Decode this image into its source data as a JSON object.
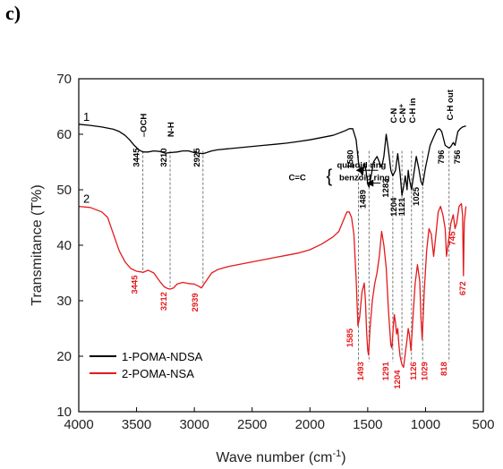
{
  "panel_label": "c)",
  "chart_data": {
    "type": "line",
    "xlabel": "Wave number (cm",
    "xlabel_sup": "-1",
    "xlabel_end": ")",
    "ylabel": "Transmitance (T%)",
    "xlim": [
      4000,
      500
    ],
    "ylim": [
      10,
      70
    ],
    "x_ticks": [
      "4000",
      "3500",
      "3000",
      "2500",
      "2000",
      "1500",
      "1000",
      "500"
    ],
    "y_ticks": [
      "10",
      "20",
      "30",
      "40",
      "50",
      "60",
      "70"
    ],
    "series": [
      {
        "name": "1-POMA-NDSA",
        "curve_label": "1",
        "color": "#000000",
        "x": [
          4000,
          3900,
          3800,
          3700,
          3650,
          3600,
          3560,
          3520,
          3480,
          3445,
          3400,
          3350,
          3300,
          3250,
          3210,
          3150,
          3100,
          3050,
          3000,
          2925,
          2850,
          2800,
          2700,
          2600,
          2500,
          2400,
          2300,
          2200,
          2100,
          2000,
          1900,
          1800,
          1750,
          1700,
          1660,
          1630,
          1600,
          1580,
          1560,
          1545,
          1530,
          1515,
          1500,
          1489,
          1470,
          1450,
          1420,
          1400,
          1380,
          1360,
          1340,
          1320,
          1300,
          1283,
          1260,
          1240,
          1220,
          1204,
          1190,
          1175,
          1160,
          1150,
          1140,
          1121,
          1100,
          1080,
          1060,
          1040,
          1025,
          1000,
          960,
          930,
          900,
          880,
          860,
          830,
          796,
          780,
          760,
          745,
          720,
          700,
          680,
          650
        ],
        "y": [
          61.8,
          61.6,
          61.3,
          60.9,
          60.5,
          59.8,
          59.0,
          58.0,
          57.2,
          56.8,
          56.8,
          57.0,
          56.9,
          56.6,
          56.7,
          56.8,
          57.0,
          57.0,
          56.7,
          56.5,
          57.0,
          57.2,
          57.4,
          57.6,
          57.8,
          58.0,
          58.2,
          58.4,
          58.7,
          59.0,
          59.4,
          59.8,
          60.2,
          60.6,
          61.0,
          61.0,
          59.0,
          55.0,
          53.2,
          52.6,
          54.8,
          53.5,
          51.0,
          50.5,
          52.5,
          55.0,
          56.0,
          55.0,
          54.0,
          56.0,
          60.0,
          57.0,
          53.5,
          52.5,
          53.5,
          56.5,
          53.0,
          49.0,
          50.5,
          52.5,
          50.0,
          53.5,
          52.0,
          50.0,
          53.0,
          56.0,
          54.0,
          51.5,
          50.8,
          54.0,
          58.0,
          59.5,
          60.8,
          61.0,
          60.5,
          58.0,
          57.5,
          57.8,
          58.5,
          58.0,
          60.5,
          61.0,
          61.3,
          61.5
        ]
      },
      {
        "name": "2-POMA-NSA",
        "curve_label": "2",
        "color": "#e41a1c",
        "x": [
          4000,
          3900,
          3800,
          3750,
          3700,
          3650,
          3600,
          3550,
          3500,
          3460,
          3445,
          3400,
          3350,
          3300,
          3260,
          3230,
          3212,
          3180,
          3150,
          3100,
          3050,
          3000,
          2960,
          2939,
          2900,
          2850,
          2800,
          2700,
          2600,
          2500,
          2400,
          2300,
          2200,
          2100,
          2000,
          1900,
          1800,
          1750,
          1700,
          1680,
          1660,
          1640,
          1620,
          1600,
          1585,
          1570,
          1550,
          1530,
          1520,
          1510,
          1500,
          1493,
          1480,
          1460,
          1440,
          1420,
          1400,
          1380,
          1360,
          1340,
          1320,
          1300,
          1291,
          1280,
          1270,
          1260,
          1250,
          1240,
          1230,
          1220,
          1204,
          1190,
          1175,
          1160,
          1150,
          1140,
          1126,
          1110,
          1090,
          1070,
          1050,
          1040,
          1029,
          1010,
          990,
          970,
          950,
          930,
          910,
          890,
          870,
          850,
          830,
          818,
          800,
          780,
          760,
          745,
          730,
          710,
          690,
          680,
          672,
          665,
          650
        ],
        "y": [
          47.0,
          46.8,
          46.0,
          45.0,
          42.0,
          39.0,
          37.0,
          35.8,
          35.3,
          35.2,
          35.1,
          35.5,
          35.0,
          33.5,
          32.5,
          32.2,
          32.1,
          32.3,
          33.0,
          33.3,
          33.1,
          33.0,
          32.6,
          32.3,
          33.5,
          35.0,
          35.6,
          36.2,
          36.6,
          37.0,
          37.4,
          37.8,
          38.2,
          38.6,
          39.2,
          40.2,
          41.5,
          42.5,
          45.0,
          46.0,
          46.0,
          45.0,
          42.0,
          34.0,
          25.5,
          27.0,
          31.5,
          33.2,
          30.0,
          24.5,
          21.0,
          20.2,
          25.0,
          30.0,
          33.0,
          35.0,
          38.0,
          42.5,
          40.0,
          36.0,
          28.0,
          22.0,
          21.5,
          25.0,
          27.5,
          26.0,
          24.0,
          25.0,
          22.0,
          20.0,
          18.5,
          18.0,
          20.5,
          23.0,
          25.0,
          24.0,
          21.0,
          26.5,
          33.0,
          36.5,
          33.5,
          27.0,
          23.0,
          32.0,
          39.0,
          43.0,
          42.0,
          38.0,
          42.0,
          46.0,
          47.0,
          45.5,
          43.0,
          38.0,
          41.0,
          44.0,
          45.5,
          43.0,
          44.0,
          47.0,
          47.5,
          45.5,
          34.5,
          44.0,
          47.0
        ]
      }
    ],
    "vlines": [
      {
        "x": 3445,
        "ymin": 35.5,
        "ymax": 57.0
      },
      {
        "x": 3210,
        "ymin": 32.5,
        "ymax": 57.0
      },
      {
        "x": 2925,
        "ymin": 32.5,
        "ymax": 57.0
      },
      {
        "x": 1580,
        "ymin": 19.0,
        "ymax": 57.0
      },
      {
        "x": 1489,
        "ymin": 19.0,
        "ymax": 57.0
      },
      {
        "x": 1283,
        "ymin": 19.0,
        "ymax": 57.0
      },
      {
        "x": 1204,
        "ymin": 19.0,
        "ymax": 57.0
      },
      {
        "x": 1121,
        "ymin": 19.0,
        "ymax": 57.0
      },
      {
        "x": 1025,
        "ymin": 19.0,
        "ymax": 57.0
      },
      {
        "x": 796,
        "ymin": 19.0,
        "ymax": 57.0
      }
    ],
    "annotations_black": [
      {
        "text": "3445",
        "x": 3445,
        "y": 57.5,
        "dx": -4
      },
      {
        "text": "3210",
        "x": 3210,
        "y": 57.5,
        "dx": -4
      },
      {
        "text": "2925",
        "x": 2925,
        "y": 57.5,
        "dx": -4
      },
      {
        "text": "1580",
        "x": 1580,
        "y": 57.2,
        "dx": -6
      },
      {
        "text": "1489",
        "x": 1489,
        "y": 50.0,
        "dx": -4
      },
      {
        "text": "1283",
        "x": 1283,
        "y": 52.0,
        "dx": -5
      },
      {
        "text": "1204",
        "x": 1204,
        "y": 48.6,
        "dx": -6
      },
      {
        "text": "1121",
        "x": 1150,
        "y": 48.6,
        "dx": -4
      },
      {
        "text": "1025",
        "x": 1025,
        "y": 50.5,
        "dx": -4
      },
      {
        "text": "796",
        "x": 796,
        "y": 57.2,
        "dx": -6
      },
      {
        "text": "756",
        "x": 700,
        "y": 57.2,
        "dx": 0
      }
    ],
    "annotations_red": [
      {
        "text": "3445",
        "x": 3445,
        "y": 34.6,
        "dx": -6
      },
      {
        "text": "3212",
        "x": 3212,
        "y": 31.6,
        "dx": -4
      },
      {
        "text": "2939",
        "x": 2939,
        "y": 31.4,
        "dx": -4
      },
      {
        "text": "1585",
        "x": 1585,
        "y": 25.0,
        "dx": -6
      },
      {
        "text": "1493",
        "x": 1493,
        "y": 19.0,
        "dx": -6
      },
      {
        "text": "1291",
        "x": 1291,
        "y": 19.0,
        "dx": -4
      },
      {
        "text": "1204",
        "x": 1204,
        "y": 17.5,
        "dx": -2
      },
      {
        "text": "1126",
        "x": 1126,
        "y": 19.0,
        "dx": 6
      },
      {
        "text": "1029",
        "x": 1029,
        "y": 19.0,
        "dx": 6
      },
      {
        "text": "818",
        "x": 818,
        "y": 19.0,
        "dx": 0
      },
      {
        "text": "745",
        "x": 745,
        "y": 42.5,
        "dx": 0
      },
      {
        "text": "672",
        "x": 672,
        "y": 33.5,
        "dx": 2
      }
    ],
    "group_labels": [
      {
        "text": "–OCH",
        "x": 3445,
        "y": 59.5
      },
      {
        "text": "N-H",
        "x": 3210,
        "y": 59.5
      },
      {
        "text": "C-N",
        "x": 1283,
        "y": 62.0
      },
      {
        "text": "C-N⁺",
        "x": 1204,
        "y": 62.0
      },
      {
        "text": "C-H in",
        "x": 1121,
        "y": 62.0
      },
      {
        "text": "C-H out",
        "x": 796,
        "y": 62.5
      }
    ],
    "cc_label": "C=C",
    "ring_labels": [
      "quinoid ring",
      "benzoid ring"
    ],
    "ring_arrows": [
      {
        "ring": "quinoid ring",
        "x_from": 1720,
        "x_to": 1580,
        "y": 53.5
      },
      {
        "ring": "benzoid ring",
        "x_from": 1700,
        "x_to": 1489,
        "y": 51.2
      }
    ]
  }
}
